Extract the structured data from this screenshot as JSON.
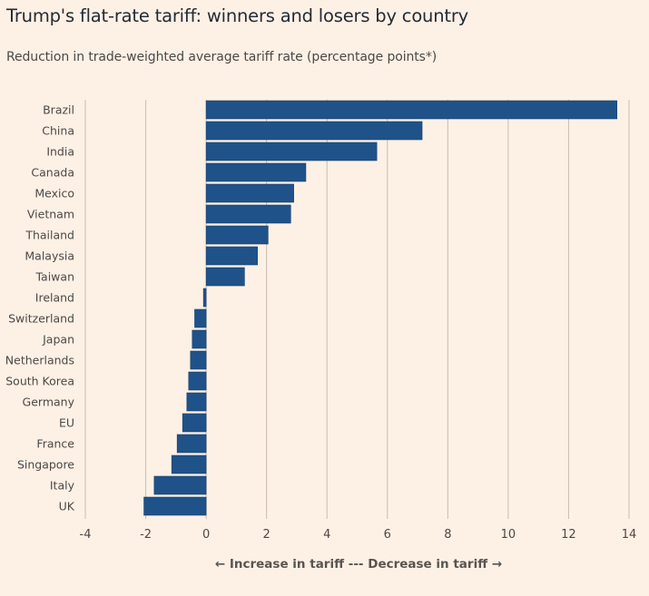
{
  "chart_data": {
    "type": "bar",
    "orientation": "horizontal",
    "title": "Trump's flat-rate tariff: winners and losers by country",
    "subtitle": "Reduction in trade-weighted average tariff rate (percentage points*)",
    "xlabel": "← Increase in tariff --- Decrease in tariff →",
    "ylabel": "",
    "categories": [
      "Brazil",
      "China",
      "India",
      "Canada",
      "Mexico",
      "Vietnam",
      "Thailand",
      "Malaysia",
      "Taiwan",
      "Ireland",
      "Switzerland",
      "Japan",
      "Netherlands",
      "South Korea",
      "Germany",
      "EU",
      "France",
      "Singapore",
      "Italy",
      "UK"
    ],
    "values": [
      13.6,
      7.15,
      5.65,
      3.3,
      2.9,
      2.8,
      2.05,
      1.7,
      1.27,
      -0.09,
      -0.38,
      -0.46,
      -0.52,
      -0.58,
      -0.64,
      -0.78,
      -0.96,
      -1.14,
      -1.72,
      -2.06
    ],
    "xlim": [
      -4,
      14
    ],
    "xticks": [
      -4,
      -2,
      0,
      2,
      4,
      6,
      8,
      10,
      12,
      14
    ],
    "grid": true,
    "legend": "none",
    "colors": {
      "bar": "#1f5289",
      "bar_edge": "#17406d",
      "grid": "#c9bcb0",
      "background": "#fdf1e6"
    }
  }
}
